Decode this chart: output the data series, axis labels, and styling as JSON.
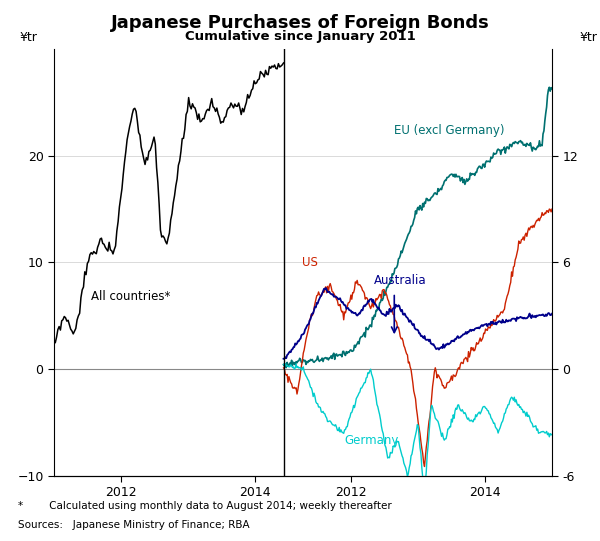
{
  "title": "Japanese Purchases of Foreign Bonds",
  "subtitle": "Cumulative since January 2011",
  "ylabel_left": "¥tr",
  "ylabel_right": "¥tr",
  "footnote1": "*        Calculated using monthly data to August 2014; weekly thereafter",
  "footnote2": "Sources:   Japanese Ministry of Finance; RBA",
  "left_ylim": [
    -10,
    30
  ],
  "right_ylim": [
    -6,
    18
  ],
  "left_yticks": [
    -10,
    0,
    10,
    20
  ],
  "right_yticks": [
    -6,
    0,
    6,
    12
  ],
  "colors": {
    "all_countries": "#000000",
    "eu": "#007070",
    "us": "#cc2200",
    "australia": "#00008B",
    "germany": "#00CCCC"
  }
}
